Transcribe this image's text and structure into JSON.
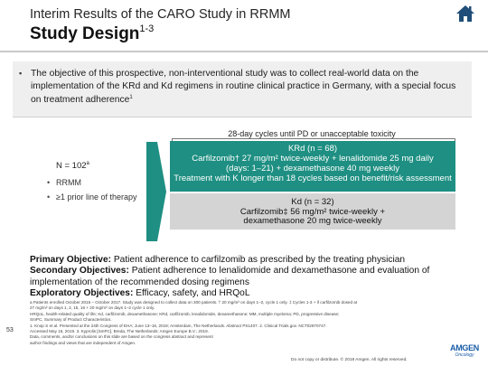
{
  "header": {
    "kicker": "Interim Results of the CARO Study in RRMM",
    "title": "Study Design",
    "title_sup": "1-3"
  },
  "objective": {
    "text": "The objective of this prospective, non-interventional study was to collect real-world data on the implementation of the KRd and Kd regimens in routine clinical practice in Germany, with a special focus on treatment adherence",
    "sup": "1"
  },
  "design": {
    "cycle_label": "28-day cycles until PD or unacceptable toxicity",
    "population": {
      "n": "N = 102",
      "n_sup": "a",
      "criteria": [
        "RRMM",
        "≥1 prior line of therapy"
      ]
    },
    "arms": [
      {
        "lines": [
          "KRd (n = 68)",
          "Carfilzomib† 27 mg/m² twice-weekly + lenalidomide 25 mg daily",
          "(days: 1–21) + dexamethasone 40 mg weekly",
          "Treatment with K longer than 18 cycles based on benefit/risk assessment"
        ]
      },
      {
        "lines": [
          "Kd (n = 32)",
          "Carfilzomib‡ 56 mg/m² twice-weekly +",
          "dexamethasone 20 mg twice-weekly"
        ]
      }
    ]
  },
  "objectives": {
    "primary_label": "Primary Objective:",
    "primary_text": "Patient adherence to carfilzomib as prescribed by the treating physician",
    "secondary_label": "Secondary Objectives:",
    "secondary_text": "Patient adherence to lenalidomide and dexamethasone and evaluation of implementation of the recommended dosing regimens",
    "exploratory_label": "Exploratory Objectives:",
    "exploratory_text": "Efficacy, safety, and HRQoL"
  },
  "footnotes": [
    "a Patients enrolled October 2016 – October 2017. Study was designed to collect data on 300 patients. † 20 mg/m² on days 1–2, cycle 1 only. ‡ Cycles 1-3 + if carfilzomib dosed at",
    "27 mg/m² on days 1, 2, 15, 16 + 20 mg/m² on days 1–2 cycle 1 only.",
    "HRQoL, health-related quality of life; Kd, carfilzomib, dexamethasone; KRd, carfilzomib, lenalidomide, dexamethasone; MM, multiple myeloma; PD, progressive disease;",
    "SmPC, Summary of Product Characteristics.",
    "1. Knop S et al. Presented at the 24th Congress of EHA; June 13–16, 2019; Amsterdam, The Netherlands. Abstract PS1407. 2. Clinical Trials.gov. NCT02970747.",
    "Accessed May 16, 2019. 3. Kyprolis [SmPC]. Breda, The Netherlands: Amgen Europe B.V.; 2019.",
    "Data, comments, and/or conclusions on this slide are based on the congress abstract and represent",
    "author findings and views that are independent of Amgen."
  ],
  "page_number": "53",
  "legal": "Do not copy or distribute. © 2019 Amgen. All rights reserved.",
  "logo": {
    "word": "AMGEN",
    "sub": "Oncology",
    "color": "#1a5da8"
  },
  "colors": {
    "krd_box": "#1e8f82",
    "kd_box": "#d4d4d4",
    "objective_box": "#efefef"
  },
  "icons": {
    "home": "home-icon"
  }
}
